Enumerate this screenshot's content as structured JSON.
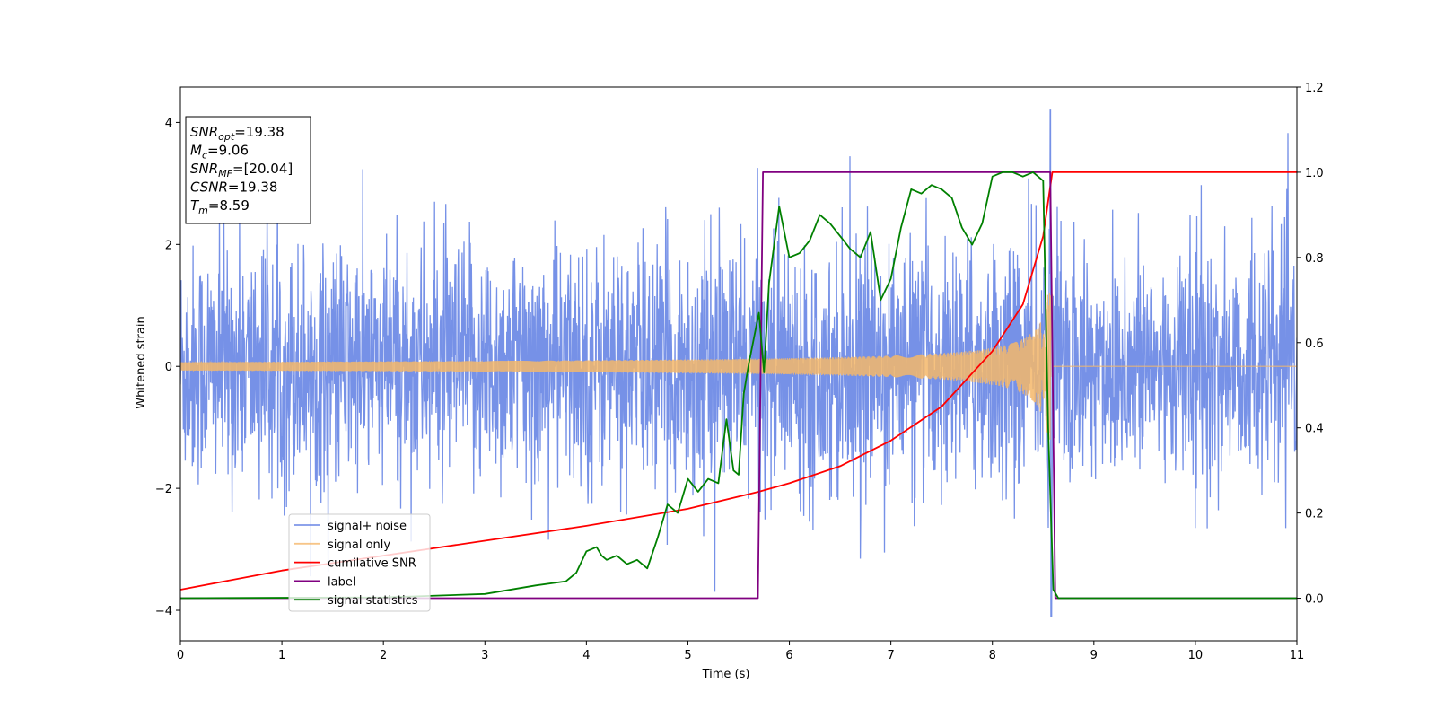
{
  "chart_data": {
    "type": "line",
    "xlabel": "Time (s)",
    "ylabel": "Whitened strain",
    "xlim": [
      0,
      11
    ],
    "ylim_left": [
      -4.5,
      4.58
    ],
    "ylim_right": [
      -0.1,
      1.2
    ],
    "x_ticks": [
      "0",
      "1",
      "2",
      "3",
      "4",
      "5",
      "6",
      "7",
      "8",
      "9",
      "10",
      "11"
    ],
    "y_ticks_left": [
      "−4",
      "−2",
      "0",
      "2",
      "4"
    ],
    "y_ticks_right": [
      "0.0",
      "0.2",
      "0.4",
      "0.6",
      "0.8",
      "1.0",
      "1.2"
    ],
    "legend_position": "lower-left",
    "annotation": [
      {
        "base": "SNR",
        "sub": "opt",
        "value": "=19.38"
      },
      {
        "base": "M",
        "sub": "c",
        "value": "=9.06"
      },
      {
        "base": "SNR",
        "sub": "MF",
        "value": "=[20.04]"
      },
      {
        "base": "CSNR",
        "sub": "",
        "value": "=19.38"
      },
      {
        "base": "T",
        "sub": "m",
        "value": "=8.59"
      }
    ],
    "series": [
      {
        "name": "signal+ noise",
        "color": "#6f8be6",
        "axis": "left",
        "kind": "noisy",
        "std": 1.0,
        "x_range": [
          0,
          11
        ],
        "merger_time": 8.59,
        "peak_values": [
          4.2,
          -4.1
        ]
      },
      {
        "name": "signal only",
        "color": "#f5b76a",
        "axis": "left",
        "kind": "chirp",
        "merger_time": 8.59,
        "amplitude_start": 0.07,
        "amplitude_end": 1.2
      },
      {
        "name": "cumilative SNR",
        "color": "#ff0000",
        "axis": "right",
        "x": [
          0,
          1,
          2,
          3,
          4,
          5,
          5.7,
          6,
          6.5,
          7,
          7.5,
          8,
          8.3,
          8.5,
          8.59,
          11
        ],
        "values": [
          0.02,
          0.065,
          0.1,
          0.135,
          0.17,
          0.21,
          0.25,
          0.27,
          0.31,
          0.37,
          0.45,
          0.58,
          0.69,
          0.85,
          1.0,
          1.0
        ]
      },
      {
        "name": "label",
        "color": "#800080",
        "axis": "right",
        "x": [
          0,
          5.69,
          5.74,
          8.57,
          8.62,
          11
        ],
        "values": [
          0,
          0,
          1,
          1,
          0,
          0
        ]
      },
      {
        "name": "signal statistics",
        "color": "#008000",
        "axis": "right",
        "x": [
          0,
          2,
          3,
          3.5,
          3.8,
          3.9,
          4.0,
          4.1,
          4.15,
          4.2,
          4.3,
          4.4,
          4.5,
          4.6,
          4.7,
          4.8,
          4.9,
          5.0,
          5.1,
          5.2,
          5.3,
          5.38,
          5.45,
          5.5,
          5.55,
          5.6,
          5.7,
          5.75,
          5.8,
          5.9,
          6.0,
          6.1,
          6.2,
          6.3,
          6.4,
          6.5,
          6.6,
          6.7,
          6.8,
          6.9,
          7.0,
          7.1,
          7.2,
          7.3,
          7.4,
          7.5,
          7.6,
          7.7,
          7.8,
          7.9,
          8.0,
          8.1,
          8.2,
          8.3,
          8.4,
          8.5,
          8.55,
          8.6,
          8.65,
          9,
          11
        ],
        "values": [
          0,
          0.002,
          0.01,
          0.03,
          0.04,
          0.06,
          0.11,
          0.12,
          0.1,
          0.09,
          0.1,
          0.08,
          0.09,
          0.07,
          0.14,
          0.22,
          0.2,
          0.28,
          0.25,
          0.28,
          0.27,
          0.42,
          0.3,
          0.29,
          0.48,
          0.55,
          0.67,
          0.53,
          0.74,
          0.92,
          0.8,
          0.81,
          0.84,
          0.9,
          0.88,
          0.85,
          0.82,
          0.8,
          0.86,
          0.7,
          0.75,
          0.87,
          0.96,
          0.95,
          0.97,
          0.96,
          0.94,
          0.87,
          0.83,
          0.88,
          0.99,
          1.0,
          1.0,
          0.99,
          1.0,
          0.98,
          0.4,
          0.02,
          0.0,
          0.0,
          0.0
        ]
      }
    ]
  }
}
